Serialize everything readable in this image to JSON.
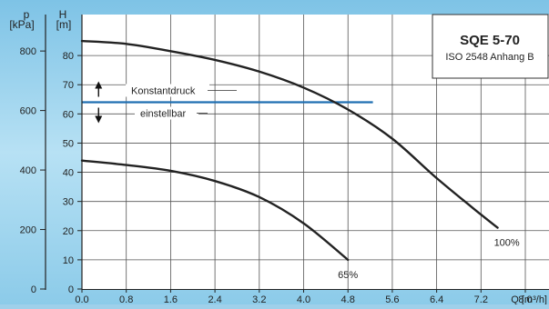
{
  "chart_data": {
    "type": "line",
    "title": "SQE 5-70",
    "subtitle": "ISO 2548 Anhang B",
    "x_axis": {
      "label": "Q [m³/h]",
      "ticks": [
        "0.0",
        "0.8",
        "1.6",
        "2.4",
        "3.2",
        "4.0",
        "4.8",
        "5.6",
        "6.4",
        "7.2",
        "8.0"
      ],
      "range": [
        0,
        8.0
      ]
    },
    "y_axis": {
      "label_symbol": "H",
      "label_unit": "[m]",
      "ticks": [
        "0",
        "10",
        "20",
        "30",
        "40",
        "50",
        "60",
        "70",
        "80"
      ],
      "range": [
        0,
        90
      ]
    },
    "y2_axis": {
      "label_symbol": "p",
      "label_unit": "[kPa]",
      "ticks": [
        "0",
        "200",
        "400",
        "600",
        "800"
      ],
      "values": [
        0,
        200,
        400,
        600,
        800
      ]
    },
    "grid": true,
    "series": [
      {
        "name": "100%",
        "x": [
          0.0,
          0.8,
          1.6,
          2.4,
          3.2,
          4.0,
          4.8,
          5.6,
          6.4,
          7.2,
          7.5
        ],
        "y": [
          85.0,
          84.0,
          81.5,
          78.5,
          74.5,
          69.0,
          61.5,
          51.5,
          38.0,
          25.5,
          21.0
        ]
      },
      {
        "name": "65%",
        "x": [
          0.0,
          0.8,
          1.6,
          2.4,
          3.2,
          4.0,
          4.8
        ],
        "y": [
          44.0,
          42.5,
          40.5,
          37.0,
          31.5,
          22.5,
          10.0
        ]
      }
    ],
    "constant_pressure": {
      "y": 64,
      "x_end": 5.25,
      "label_top": "Konstantdruck",
      "label_bottom": "einstellbar"
    }
  }
}
